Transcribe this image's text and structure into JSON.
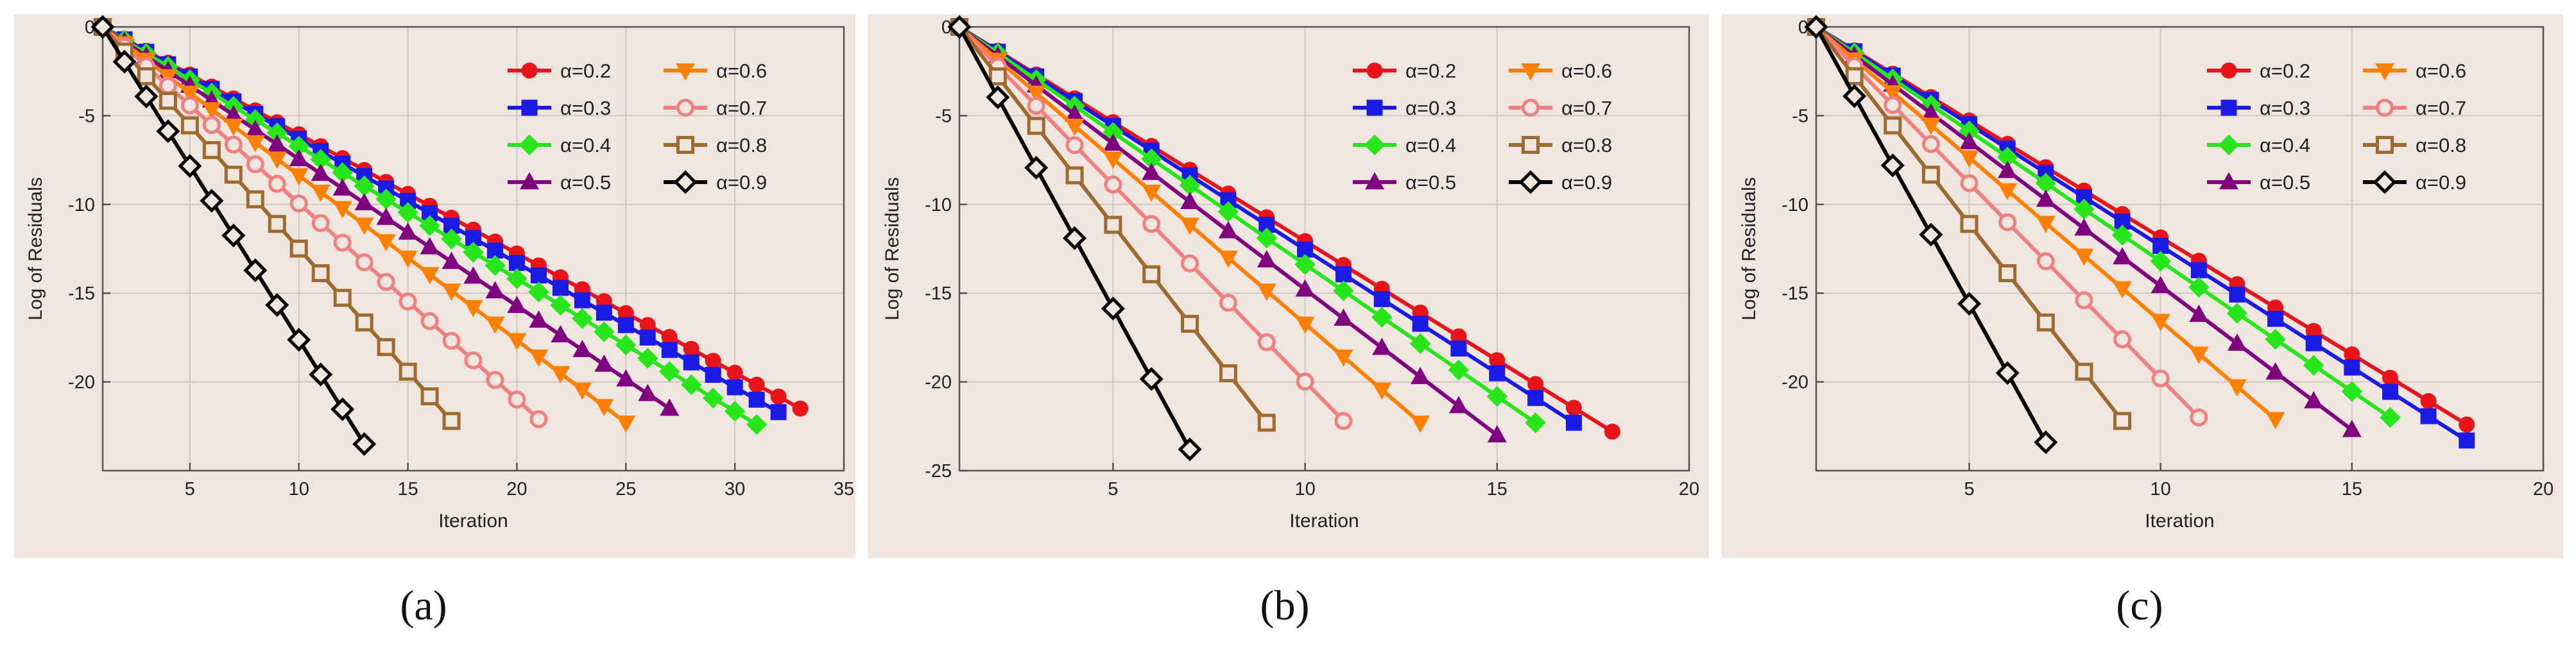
{
  "colors": {
    "panel_bg": "#efe6e0",
    "plot_bg": "#efe6e0",
    "grid": "#cfc6c1",
    "axis": "#555555",
    "text": "#222222"
  },
  "series_styles": [
    {
      "alpha": "0.2",
      "color": "#e8141a",
      "marker": "circle"
    },
    {
      "alpha": "0.3",
      "color": "#1b1be6",
      "marker": "square"
    },
    {
      "alpha": "0.4",
      "color": "#28e61c",
      "marker": "diamond"
    },
    {
      "alpha": "0.5",
      "color": "#800080",
      "marker": "triangle-up"
    },
    {
      "alpha": "0.6",
      "color": "#ff8000",
      "marker": "triangle-down"
    },
    {
      "alpha": "0.7",
      "color": "#f08080",
      "marker": "circle-open"
    },
    {
      "alpha": "0.8",
      "color": "#9f6a2e",
      "marker": "square-open"
    },
    {
      "alpha": "0.9",
      "color": "#000000",
      "marker": "diamond-open"
    }
  ],
  "chart_data": [
    {
      "type": "line",
      "caption": "(a)",
      "xlabel": "Iteration",
      "ylabel": "Log of Residuals",
      "xlim": [
        1,
        35
      ],
      "ylim": [
        -25,
        0
      ],
      "xticks": [
        5,
        10,
        15,
        20,
        25,
        30,
        35
      ],
      "yticks": [
        0,
        -5,
        -10,
        -15,
        -20
      ],
      "series": [
        {
          "name": "α=0.2",
          "x_start": 1,
          "x_end": 33,
          "y_end": -21.5
        },
        {
          "name": "α=0.3",
          "x_start": 1,
          "x_end": 32,
          "y_end": -21.7
        },
        {
          "name": "α=0.4",
          "x_start": 1,
          "x_end": 31,
          "y_end": -22.4
        },
        {
          "name": "α=0.5",
          "x_start": 1,
          "x_end": 27,
          "y_end": -21.5
        },
        {
          "name": "α=0.6",
          "x_start": 1,
          "x_end": 25,
          "y_end": -22.3
        },
        {
          "name": "α=0.7",
          "x_start": 1,
          "x_end": 21,
          "y_end": -22.1
        },
        {
          "name": "α=0.8",
          "x_start": 1,
          "x_end": 17,
          "y_end": -22.2
        },
        {
          "name": "α=0.9",
          "x_start": 1,
          "x_end": 13,
          "y_end": -23.5
        }
      ]
    },
    {
      "type": "line",
      "caption": "(b)",
      "xlabel": "Iteration",
      "ylabel": "Log of Residuals",
      "xlim": [
        1,
        20
      ],
      "ylim": [
        -25,
        0
      ],
      "xticks": [
        5,
        10,
        15,
        20
      ],
      "yticks": [
        0,
        -5,
        -10,
        -15,
        -20,
        -25
      ],
      "series": [
        {
          "name": "α=0.2",
          "x_start": 1,
          "x_end": 18,
          "y_end": -22.8
        },
        {
          "name": "α=0.3",
          "x_start": 1,
          "x_end": 17,
          "y_end": -22.3
        },
        {
          "name": "α=0.4",
          "x_start": 1,
          "x_end": 16,
          "y_end": -22.3
        },
        {
          "name": "α=0.5",
          "x_start": 1,
          "x_end": 15,
          "y_end": -23.0
        },
        {
          "name": "α=0.6",
          "x_start": 1,
          "x_end": 13,
          "y_end": -22.3
        },
        {
          "name": "α=0.7",
          "x_start": 1,
          "x_end": 11,
          "y_end": -22.2
        },
        {
          "name": "α=0.8",
          "x_start": 1,
          "x_end": 9,
          "y_end": -22.3
        },
        {
          "name": "α=0.9",
          "x_start": 1,
          "x_end": 7,
          "y_end": -23.8
        }
      ]
    },
    {
      "type": "line",
      "caption": "(c)",
      "xlabel": "Iteration",
      "ylabel": "Log of Residuals",
      "xlim": [
        1,
        20
      ],
      "ylim": [
        -25,
        0
      ],
      "xticks": [
        5,
        10,
        15,
        20
      ],
      "yticks": [
        0,
        -5,
        -10,
        -15,
        -20
      ],
      "series": [
        {
          "name": "α=0.2",
          "x_start": 1,
          "x_end": 18,
          "y_end": -22.4
        },
        {
          "name": "α=0.3",
          "x_start": 1,
          "x_end": 18,
          "y_end": -23.3
        },
        {
          "name": "α=0.4",
          "x_start": 1,
          "x_end": 16,
          "y_end": -22.0
        },
        {
          "name": "α=0.5",
          "x_start": 1,
          "x_end": 15,
          "y_end": -22.7
        },
        {
          "name": "α=0.6",
          "x_start": 1,
          "x_end": 13,
          "y_end": -22.1
        },
        {
          "name": "α=0.7",
          "x_start": 1,
          "x_end": 11,
          "y_end": -22.0
        },
        {
          "name": "α=0.8",
          "x_start": 1,
          "x_end": 9,
          "y_end": -22.2
        },
        {
          "name": "α=0.9",
          "x_start": 1,
          "x_end": 7,
          "y_end": -23.4
        }
      ]
    }
  ]
}
